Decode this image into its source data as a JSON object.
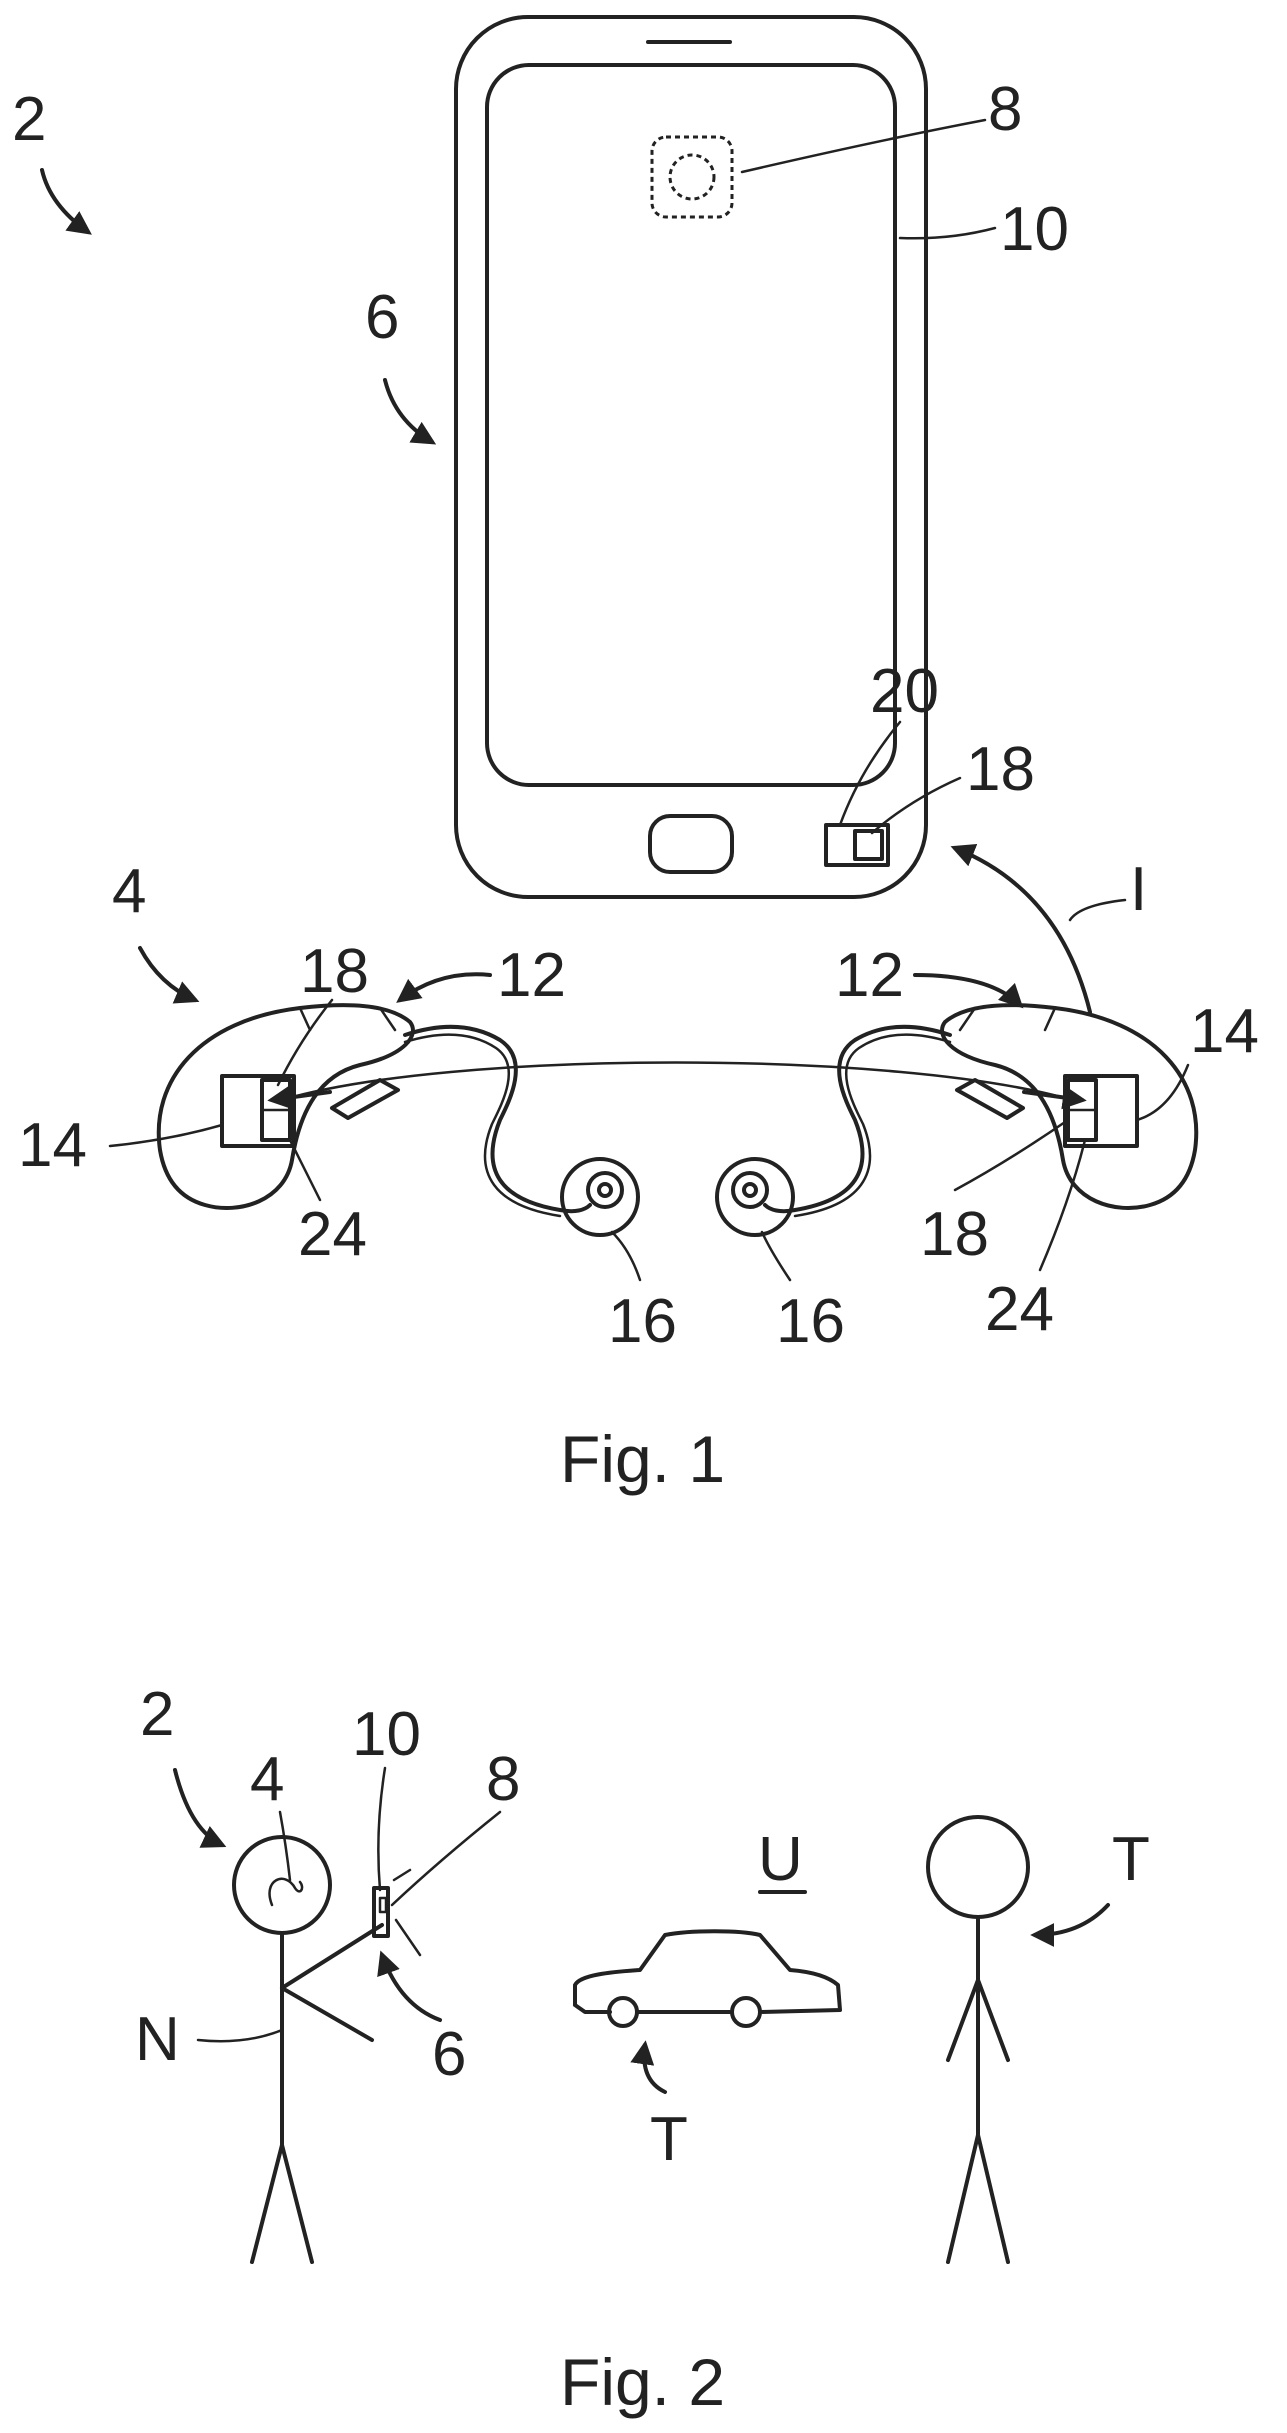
{
  "figure1": {
    "caption": "Fig. 1",
    "labels": {
      "system": "2",
      "phone": "6",
      "camera": "8",
      "housing": "10",
      "unit20": "20",
      "unit18_phone": "18",
      "interface": "I",
      "hearing_system": "4",
      "left_18": "18",
      "left_12": "12",
      "left_14": "14",
      "left_24": "24",
      "left_16": "16",
      "right_16": "16",
      "right_12": "12",
      "right_14": "14",
      "right_18": "18",
      "right_24": "24"
    }
  },
  "figure2": {
    "caption": "Fig. 2",
    "labels": {
      "system": "2",
      "hearing_aid": "4",
      "housing": "10",
      "camera": "8",
      "user": "N",
      "phone": "6",
      "environment": "U",
      "target_car": "T",
      "target_person": "T"
    }
  }
}
